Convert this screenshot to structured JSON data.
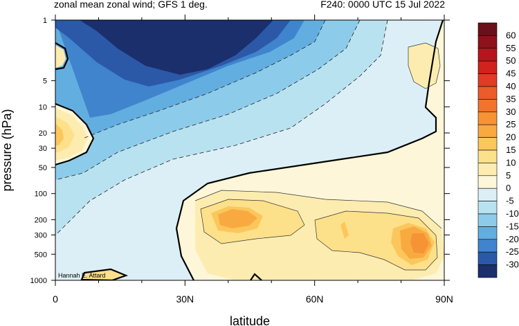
{
  "header": {
    "title": "zonal mean zonal wind; GFS 1 deg.",
    "forecast_time": "F240: 0000 UTC 15 Jul 2022"
  },
  "credit": "Hannah E. Attard",
  "chart_data": {
    "type": "filled-contour",
    "xlabel": "latitude",
    "ylabel": "pressure (hPa)",
    "xlim": [
      0,
      90
    ],
    "ylim": [
      1000,
      1
    ],
    "y_scale": "log",
    "x_ticks": [
      {
        "value": 0,
        "label": "0"
      },
      {
        "value": 30,
        "label": "30N"
      },
      {
        "value": 60,
        "label": "60N"
      },
      {
        "value": 90,
        "label": "90N"
      }
    ],
    "y_ticks": [
      1,
      5,
      10,
      20,
      30,
      50,
      100,
      200,
      300,
      500,
      1000
    ],
    "colorbar": {
      "levels": [
        -30,
        -25,
        -20,
        -15,
        -10,
        -5,
        0,
        5,
        10,
        15,
        20,
        25,
        30,
        35,
        40,
        45,
        50,
        55,
        60
      ],
      "labels": [
        "60",
        "55",
        "50",
        "45",
        "40",
        "35",
        "30",
        "25",
        "20",
        "15",
        "10",
        "5",
        "0",
        "-5",
        "-10",
        "-15",
        "-20",
        "-25",
        "-30"
      ],
      "colors": [
        "#6b0f1a",
        "#8e1219",
        "#b5161d",
        "#d1221e",
        "#e23b24",
        "#ec5b2a",
        "#f1742c",
        "#f69334",
        "#f8aa40",
        "#fbc75c",
        "#fde08a",
        "#fdecb0",
        "#fdf6d8",
        "#dceff7",
        "#b9e2f1",
        "#8ccbea",
        "#62aee0",
        "#3f84cc",
        "#2c58a8",
        "#1a2f6c"
      ]
    },
    "regions": [
      {
        "name": "upper-strat-easterly-jet",
        "max_level": -30,
        "lat": 28,
        "p": 1.5
      },
      {
        "name": "tropical-westerly-qbo",
        "max_level": 15,
        "lat": 0,
        "p": 20
      },
      {
        "name": "midlat-westerly-jet",
        "max_level": 20,
        "lat": 43,
        "p": 200
      },
      {
        "name": "polar-near-surface-jet",
        "max_level": 25,
        "lat": 86,
        "p": 350
      },
      {
        "name": "polar-strat-westerly",
        "max_level": 5,
        "lat": 86,
        "p": 3
      }
    ]
  }
}
